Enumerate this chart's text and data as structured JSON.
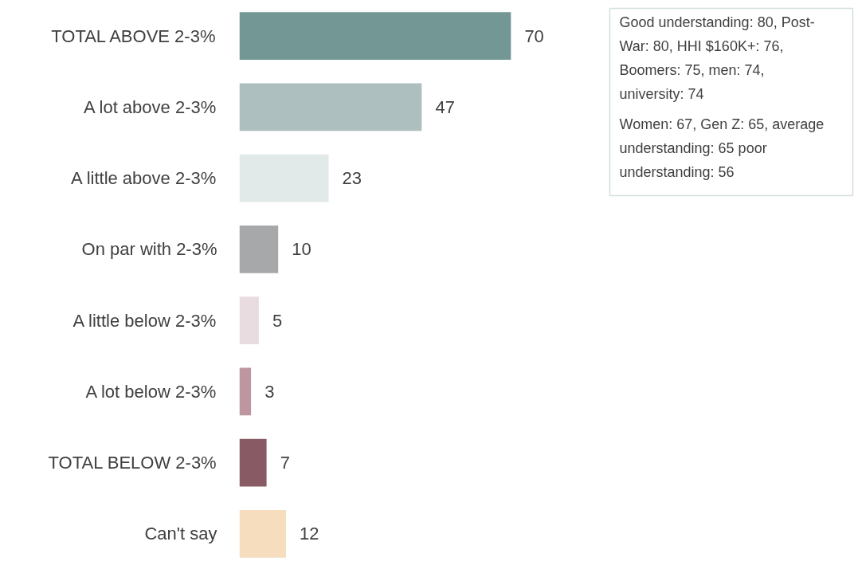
{
  "chart_data": {
    "type": "bar",
    "orientation": "horizontal",
    "data_labels": true,
    "categories": [
      "TOTAL ABOVE 2-3%",
      "A lot above 2-3%",
      "A little above 2-3%",
      "On par with 2-3%",
      "A little below 2-3%",
      "A lot below 2-3%",
      "TOTAL BELOW 2-3%",
      "Can't say"
    ],
    "values": [
      70,
      47,
      23,
      10,
      5,
      3,
      7,
      12
    ],
    "colors": [
      "#739795",
      "#adbfbe",
      "#e2e9e9",
      "#a7a8aa",
      "#e8dce0",
      "#bd969f",
      "#885a64",
      "#f5ddbd"
    ],
    "annotations": [
      "Good understanding: 80, Post-War: 80, HHI $160K+: 76, Boomers: 75, men: 74, university: 74",
      "Women: 67, Gen Z: 65, average understanding: 65 poor understanding: 56"
    ]
  }
}
